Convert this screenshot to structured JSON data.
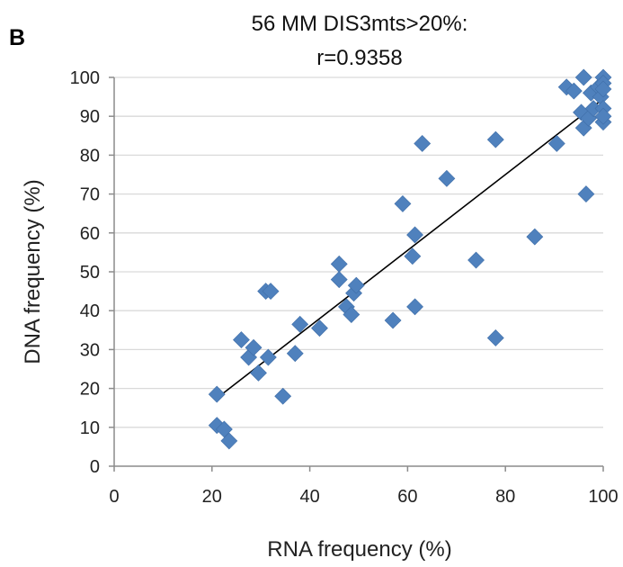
{
  "panel_label": "B",
  "chart_data": {
    "type": "scatter",
    "title_lines": [
      "56 MM  DIS3mts>20%:",
      "r=0.9358"
    ],
    "xlabel": "RNA frequency (%)",
    "ylabel": "DNA frequency (%)",
    "xlim": [
      0,
      100
    ],
    "ylim": [
      0,
      100
    ],
    "x_ticks": [
      0,
      20,
      40,
      60,
      80,
      100
    ],
    "y_ticks": [
      0,
      10,
      20,
      30,
      40,
      50,
      60,
      70,
      80,
      90,
      100
    ],
    "grid": "horizontal",
    "marker": "diamond",
    "marker_color": "#4f81bd",
    "trendline": {
      "x": [
        21,
        100
      ],
      "y": [
        17.5,
        94.5
      ]
    },
    "points": [
      {
        "x": 21,
        "y": 18.5
      },
      {
        "x": 21,
        "y": 10.5
      },
      {
        "x": 22.5,
        "y": 9.5
      },
      {
        "x": 23.5,
        "y": 6.5
      },
      {
        "x": 26,
        "y": 32.5
      },
      {
        "x": 27.5,
        "y": 28
      },
      {
        "x": 28.5,
        "y": 30.5
      },
      {
        "x": 29.5,
        "y": 24
      },
      {
        "x": 31,
        "y": 45
      },
      {
        "x": 32,
        "y": 45
      },
      {
        "x": 31.5,
        "y": 28
      },
      {
        "x": 34.5,
        "y": 18
      },
      {
        "x": 37,
        "y": 29
      },
      {
        "x": 38,
        "y": 36.5
      },
      {
        "x": 42,
        "y": 35.5
      },
      {
        "x": 46,
        "y": 52
      },
      {
        "x": 46,
        "y": 48
      },
      {
        "x": 47.5,
        "y": 41
      },
      {
        "x": 48.5,
        "y": 39
      },
      {
        "x": 49,
        "y": 44.5
      },
      {
        "x": 49.5,
        "y": 46.5
      },
      {
        "x": 57,
        "y": 37.5
      },
      {
        "x": 59,
        "y": 67.5
      },
      {
        "x": 61,
        "y": 54
      },
      {
        "x": 61.5,
        "y": 59.5
      },
      {
        "x": 61.5,
        "y": 41
      },
      {
        "x": 63,
        "y": 83
      },
      {
        "x": 68,
        "y": 74
      },
      {
        "x": 74,
        "y": 53
      },
      {
        "x": 78,
        "y": 33
      },
      {
        "x": 78,
        "y": 84
      },
      {
        "x": 86,
        "y": 59
      },
      {
        "x": 90.5,
        "y": 83
      },
      {
        "x": 92.5,
        "y": 97.5
      },
      {
        "x": 94,
        "y": 96.5
      },
      {
        "x": 95.5,
        "y": 91
      },
      {
        "x": 96,
        "y": 100
      },
      {
        "x": 96,
        "y": 87
      },
      {
        "x": 96.5,
        "y": 70
      },
      {
        "x": 97,
        "y": 89.5
      },
      {
        "x": 97.5,
        "y": 96
      },
      {
        "x": 98,
        "y": 92
      },
      {
        "x": 99,
        "y": 97.5
      },
      {
        "x": 99.5,
        "y": 95
      },
      {
        "x": 100,
        "y": 100
      },
      {
        "x": 100,
        "y": 98.5
      },
      {
        "x": 100,
        "y": 97
      },
      {
        "x": 100,
        "y": 92
      },
      {
        "x": 100,
        "y": 88.5
      },
      {
        "x": 100,
        "y": 90
      }
    ]
  }
}
